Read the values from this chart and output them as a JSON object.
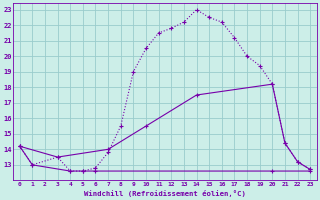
{
  "xlabel": "Windchill (Refroidissement éolien,°C)",
  "bg_color": "#cceee8",
  "line_color": "#7700aa",
  "grid_color": "#99cccc",
  "xlim": [
    -0.5,
    23.5
  ],
  "ylim": [
    12,
    23.4
  ],
  "yticks": [
    13,
    14,
    15,
    16,
    17,
    18,
    19,
    20,
    21,
    22,
    23
  ],
  "xticks": [
    0,
    1,
    2,
    3,
    4,
    5,
    6,
    7,
    8,
    9,
    10,
    11,
    12,
    13,
    14,
    15,
    16,
    17,
    18,
    19,
    20,
    21,
    22,
    23
  ],
  "curve1_x": [
    0,
    1,
    3,
    4,
    5,
    6,
    7,
    8,
    9,
    10,
    11,
    12,
    13,
    14,
    15,
    16,
    17,
    18,
    19,
    20,
    21,
    22,
    23
  ],
  "curve1_y": [
    14.2,
    13.0,
    13.5,
    12.6,
    12.6,
    12.8,
    13.8,
    15.5,
    19.0,
    20.5,
    21.5,
    21.8,
    22.2,
    23.0,
    22.5,
    22.2,
    21.2,
    20.0,
    19.4,
    18.2,
    14.4,
    13.2,
    12.7
  ],
  "curve2_x": [
    0,
    1,
    4,
    5,
    6,
    20,
    23
  ],
  "curve2_y": [
    14.2,
    13.0,
    12.6,
    12.6,
    12.6,
    12.6,
    12.6
  ],
  "curve3_x": [
    0,
    3,
    7,
    10,
    14,
    20,
    21,
    22,
    23
  ],
  "curve3_y": [
    14.2,
    13.5,
    14.0,
    15.5,
    17.5,
    18.2,
    14.4,
    13.2,
    12.7
  ]
}
